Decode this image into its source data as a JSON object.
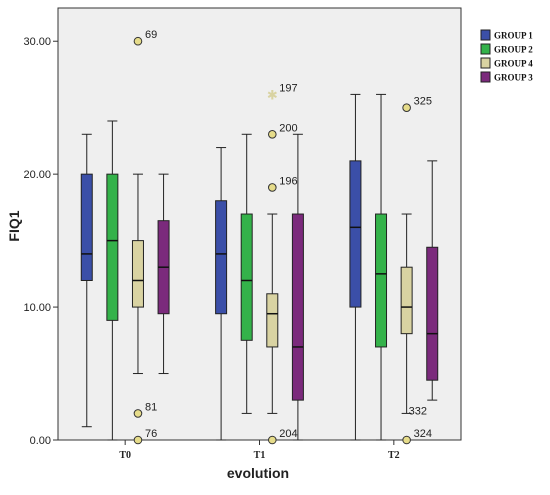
{
  "chart_data": {
    "type": "boxplot",
    "xlabel": "evolution",
    "ylabel": "FIQ1",
    "ylim": [
      0,
      32.5
    ],
    "yticks": [
      "0.00",
      "10.00",
      "20.00",
      "30.00"
    ],
    "ytick_values": [
      0,
      10,
      20,
      30
    ],
    "categories": [
      "T0",
      "T1",
      "T2"
    ],
    "legend_position": "right",
    "series": [
      {
        "name": "GROUP 1",
        "color": "#3b4fa8",
        "boxes": [
          {
            "category": "T0",
            "whisker_low": 1,
            "q1": 12,
            "median": 14,
            "q3": 20,
            "whisker_high": 23,
            "outliers": []
          },
          {
            "category": "T1",
            "whisker_low": 0,
            "q1": 9.5,
            "median": 14,
            "q3": 18,
            "whisker_high": 22,
            "outliers": []
          },
          {
            "category": "T2",
            "whisker_low": 0,
            "q1": 10,
            "median": 16,
            "q3": 21,
            "whisker_high": 26,
            "outliers": []
          }
        ]
      },
      {
        "name": "GROUP 2",
        "color": "#34b24a",
        "boxes": [
          {
            "category": "T0",
            "whisker_low": 0,
            "q1": 9,
            "median": 15,
            "q3": 20,
            "whisker_high": 24,
            "outliers": []
          },
          {
            "category": "T1",
            "whisker_low": 2,
            "q1": 7.5,
            "median": 12,
            "q3": 17,
            "whisker_high": 23,
            "outliers": []
          },
          {
            "category": "T2",
            "whisker_low": 0,
            "q1": 7,
            "median": 12.5,
            "q3": 17,
            "whisker_high": 26,
            "outliers": []
          }
        ]
      },
      {
        "name": "GROUP 4",
        "color": "#d9d3a2",
        "boxes": [
          {
            "category": "T0",
            "whisker_low": 5,
            "q1": 10,
            "median": 12,
            "q3": 15,
            "whisker_high": 20,
            "outliers": [
              {
                "value": 30,
                "label": "69",
                "marker": "circle"
              },
              {
                "value": 2,
                "label": "81",
                "marker": "circle"
              },
              {
                "value": 0,
                "label": "76",
                "marker": "circle"
              }
            ]
          },
          {
            "category": "T1",
            "whisker_low": 2,
            "q1": 7,
            "median": 9.5,
            "q3": 11,
            "whisker_high": 17,
            "outliers": [
              {
                "value": 26,
                "label": "197",
                "marker": "star"
              },
              {
                "value": 23,
                "label": "200",
                "marker": "circle"
              },
              {
                "value": 19,
                "label": "196",
                "marker": "circle"
              },
              {
                "value": 0,
                "label": "204",
                "marker": "circle"
              }
            ]
          },
          {
            "category": "T2",
            "whisker_low": 2,
            "q1": 8,
            "median": 10,
            "q3": 13,
            "whisker_high": 17,
            "outliers": [
              {
                "value": 25,
                "label": "325",
                "marker": "circle"
              },
              {
                "value": 0,
                "label": "324",
                "marker": "circle"
              }
            ],
            "extra_labels": [
              {
                "value": 2,
                "label": "332"
              }
            ]
          }
        ]
      },
      {
        "name": "GROUP 3",
        "color": "#7b2a7c",
        "boxes": [
          {
            "category": "T0",
            "whisker_low": 5,
            "q1": 9.5,
            "median": 13,
            "q3": 16.5,
            "whisker_high": 20,
            "outliers": []
          },
          {
            "category": "T1",
            "whisker_low": 0,
            "q1": 3,
            "median": 7,
            "q3": 17,
            "whisker_high": 23,
            "outliers": []
          },
          {
            "category": "T2",
            "whisker_low": 3,
            "q1": 4.5,
            "median": 8,
            "q3": 14.5,
            "whisker_high": 21,
            "outliers": []
          }
        ]
      }
    ]
  }
}
